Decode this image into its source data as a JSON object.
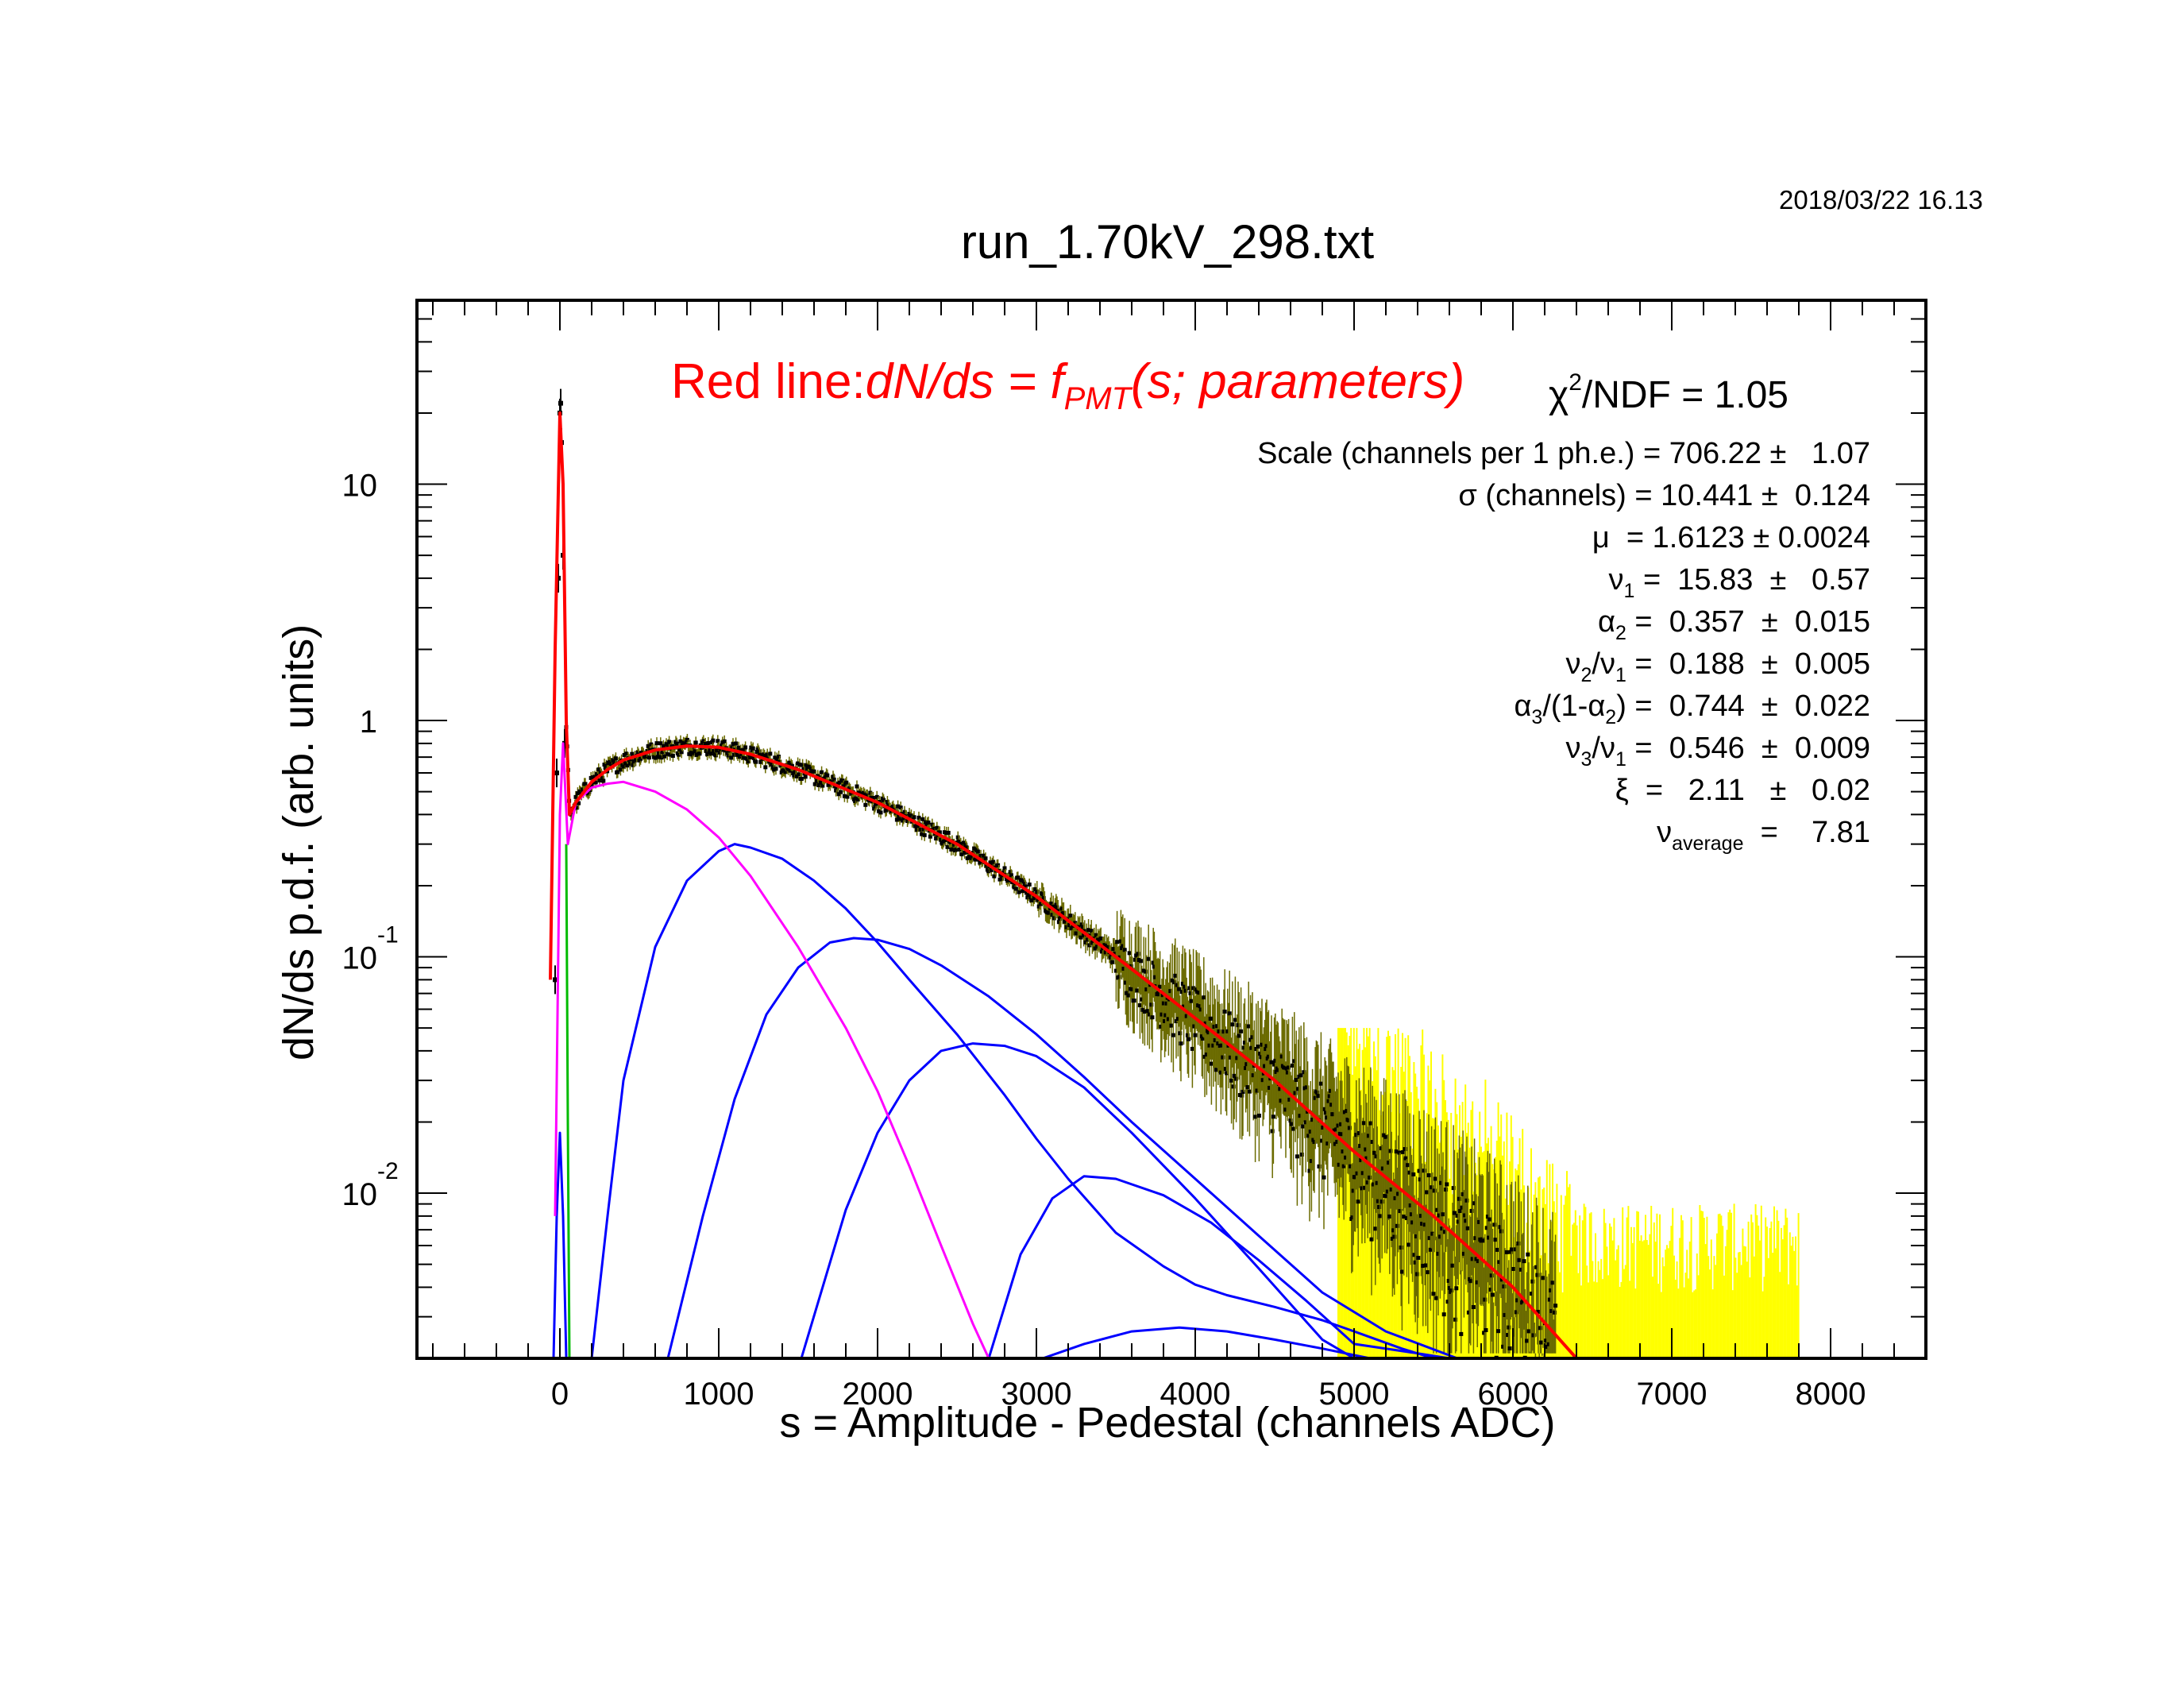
{
  "header": {
    "datestamp": "2018/03/22   16.13",
    "title": "run_1.70kV_298.txt"
  },
  "legend": {
    "red_line_prefix": "Red line:",
    "red_line_formula_main": "dN/ds = f",
    "red_line_formula_sub": "PMT",
    "red_line_formula_tail": "(s; parameters)",
    "chi2_label": "χ",
    "chi2_sup": "2",
    "chi2_rest": "/NDF   =   1.05"
  },
  "fit_parameters": {
    "scale": "Scale (channels per 1 ph.e.) = 706.22 ±   1.07",
    "sigma": "σ (channels) = 10.441 ±  0.124",
    "mu": "μ  = 1.6123 ± 0.0024",
    "nu1_a": "ν",
    "nu1_sub": "1",
    "nu1_b": " =  15.83  ±   0.57",
    "alpha2_a": "α",
    "alpha2_sub": "2",
    "alpha2_b": " =  0.357  ±  0.015",
    "nu2nu1_a": "ν",
    "nu2nu1_sub1": "2",
    "nu2nu1_mid": "/ν",
    "nu2nu1_sub2": "1",
    "nu2nu1_b": " =  0.188  ±  0.005",
    "alpha3_a": "α",
    "alpha3_sub1": "3",
    "alpha3_mid": "/(1-α",
    "alpha3_sub2": "2",
    "alpha3_b": ") =  0.744  ±  0.022",
    "nu3nu1_a": "ν",
    "nu3nu1_sub1": "3",
    "nu3nu1_mid": "/ν",
    "nu3nu1_sub2": "1",
    "nu3nu1_b": " =  0.546  ±  0.009",
    "xi": "ξ  =   2.11   ±   0.02",
    "nuavg_a": "ν",
    "nuavg_sub": "average",
    "nuavg_b": "  =    7.81"
  },
  "chart_data": {
    "type": "scatter",
    "title": "run_1.70kV_298.txt",
    "xlabel": "s = Amplitude - Pedestal (channels ADC)",
    "ylabel": "dN/ds p.d.f. (arb. units)",
    "xlim": [
      -900,
      8600
    ],
    "ylim": [
      0.002,
      60
    ],
    "y_scale": "log",
    "x_ticks": [
      0,
      1000,
      2000,
      3000,
      4000,
      5000,
      6000,
      7000,
      8000
    ],
    "x_tick_labels": [
      "0",
      "1000",
      "2000",
      "3000",
      "4000",
      "5000",
      "6000",
      "7000",
      "8000"
    ],
    "y_ticks": [
      10,
      1,
      0.1,
      0.01
    ],
    "y_tick_labels": [
      {
        "base": "10",
        "exp": ""
      },
      {
        "base": "1",
        "exp": ""
      },
      {
        "base": "10",
        "exp": "-1"
      },
      {
        "base": "10",
        "exp": "-2"
      }
    ],
    "grid": false,
    "colors": {
      "fit": "#ff0000",
      "data": "#000000",
      "errors_low_stat": "#ffff00",
      "components": "#0000ff",
      "first_component": "#ff00ff",
      "pedestal": "#00bb00"
    },
    "series": [
      {
        "kind": "fit-total",
        "color": "#ff0000",
        "x": [
          -60,
          -30,
          0,
          20,
          40,
          60,
          100,
          200,
          300,
          400,
          600,
          800,
          1000,
          1200,
          1500,
          2000,
          2500,
          3000,
          3500,
          4000,
          4500,
          5000,
          5500,
          6000,
          6400
        ],
        "y": [
          0.08,
          2.0,
          20.0,
          10.0,
          1.0,
          0.4,
          0.45,
          0.55,
          0.62,
          0.68,
          0.75,
          0.78,
          0.77,
          0.72,
          0.62,
          0.45,
          0.3,
          0.18,
          0.1,
          0.055,
          0.03,
          0.015,
          0.008,
          0.004,
          0.002
        ]
      },
      {
        "kind": "component-1",
        "color": "#ff00ff",
        "x": [
          -30,
          0,
          20,
          50,
          100,
          200,
          300,
          400,
          600,
          800,
          1000,
          1200,
          1500,
          1800,
          2000,
          2200,
          2400,
          2600,
          2700
        ],
        "y": [
          0.008,
          0.4,
          0.8,
          0.3,
          0.45,
          0.52,
          0.54,
          0.55,
          0.5,
          0.42,
          0.32,
          0.22,
          0.11,
          0.05,
          0.027,
          0.013,
          0.006,
          0.0028,
          0.002
        ]
      },
      {
        "kind": "component-2",
        "color": "#0000ff",
        "x": [
          200,
          300,
          400,
          600,
          800,
          1000,
          1100,
          1200,
          1400,
          1600,
          1800,
          2000,
          2200,
          2500,
          2800,
          3000,
          3200,
          3500,
          3800,
          4000,
          4200,
          4500,
          4800,
          5000,
          5300,
          5500
        ],
        "y": [
          0.002,
          0.008,
          0.03,
          0.11,
          0.21,
          0.28,
          0.3,
          0.29,
          0.26,
          0.21,
          0.16,
          0.115,
          0.08,
          0.047,
          0.026,
          0.017,
          0.0115,
          0.0068,
          0.0049,
          0.0041,
          0.0037,
          0.0033,
          0.0029,
          0.0026,
          0.0022,
          0.002
        ]
      },
      {
        "kind": "component-3",
        "color": "#0000ff",
        "x": [
          680,
          900,
          1100,
          1300,
          1500,
          1700,
          1850,
          2000,
          2200,
          2400,
          2700,
          3000,
          3300,
          3600,
          4000,
          4400,
          4800,
          5200,
          5650
        ],
        "y": [
          0.002,
          0.008,
          0.025,
          0.057,
          0.09,
          0.115,
          0.12,
          0.118,
          0.108,
          0.092,
          0.068,
          0.047,
          0.031,
          0.02,
          0.0115,
          0.0066,
          0.0038,
          0.0026,
          0.002
        ]
      },
      {
        "kind": "component-4",
        "color": "#0000ff",
        "x": [
          1520,
          1800,
          2000,
          2200,
          2400,
          2600,
          2800,
          3000,
          3300,
          3600,
          4000,
          4400,
          4800,
          5000
        ],
        "y": [
          0.002,
          0.0085,
          0.018,
          0.03,
          0.04,
          0.043,
          0.042,
          0.038,
          0.028,
          0.018,
          0.0095,
          0.0048,
          0.0024,
          0.002
        ]
      },
      {
        "kind": "component-5",
        "color": "#0000ff",
        "x": [
          2700,
          2900,
          3100,
          3300,
          3500,
          3800,
          4100,
          4400,
          4700,
          5000,
          5400,
          5600
        ],
        "y": [
          0.002,
          0.0055,
          0.0095,
          0.0118,
          0.0115,
          0.0098,
          0.0075,
          0.0052,
          0.0035,
          0.0023,
          0.0021,
          0.002
        ]
      },
      {
        "kind": "component-6",
        "color": "#0000ff",
        "x": [
          3040,
          3300,
          3600,
          3900,
          4200,
          4500,
          4800,
          5100
        ],
        "y": [
          0.002,
          0.0023,
          0.0026,
          0.0027,
          0.0026,
          0.0024,
          0.0022,
          0.002
        ]
      },
      {
        "kind": "pedestal-component",
        "color": "#0000ff",
        "x": [
          -40,
          -20,
          0,
          20,
          40
        ],
        "y": [
          0.002,
          0.008,
          0.018,
          0.008,
          0.002
        ]
      },
      {
        "kind": "pedestal-green",
        "color": "#00bb00",
        "x": [
          40,
          50,
          60
        ],
        "y": [
          0.3,
          0.02,
          0.002
        ]
      }
    ]
  }
}
